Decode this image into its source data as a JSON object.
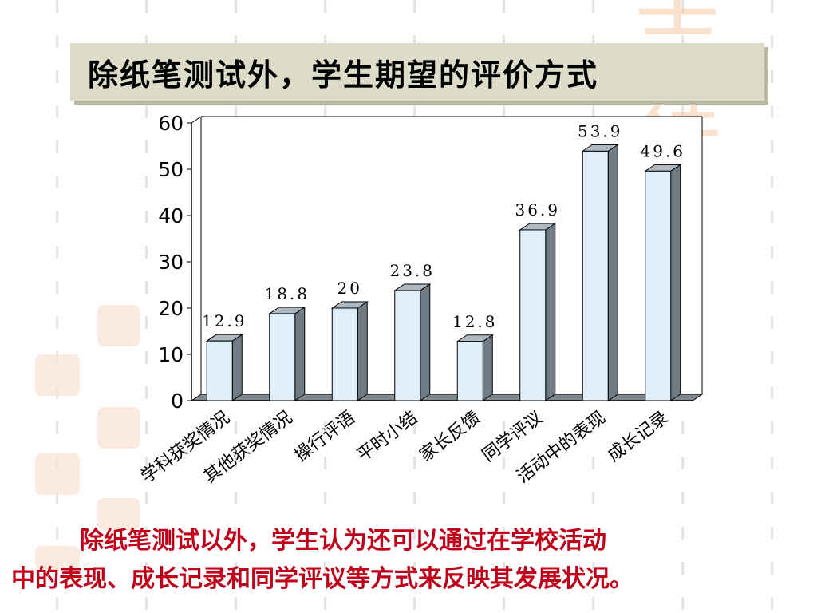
{
  "slide": {
    "title": "除纸笔测试外，学生期望的评价方式",
    "caption_line1": "除纸笔测试以外，学生认为还可以通过在学校活动",
    "caption_line2": "中的表现、成长记录和同学评议等方式来反映其发展状况。"
  },
  "colors": {
    "bar_front": "#dff0fb",
    "bar_side": "#6f7c86",
    "bar_top": "#aeb9c2",
    "caption": "#c0001a",
    "title_bg": "#dcdcc8"
  },
  "chart_data": {
    "type": "bar",
    "categories": [
      "学科获奖情况",
      "其他获奖情况",
      "操行评语",
      "平时小结",
      "家长反馈",
      "同学评议",
      "活动中的表现",
      "成长记录"
    ],
    "values": [
      12.9,
      18.8,
      20,
      23.8,
      12.8,
      36.9,
      53.9,
      49.6
    ],
    "data_labels": [
      "12.9",
      "18.8",
      "20",
      "23.8",
      "12.8",
      "36.9",
      "53.9",
      "49.6"
    ],
    "ylim": [
      0,
      60
    ],
    "yticks": [
      "0",
      "10",
      "20",
      "30",
      "40",
      "50",
      "60"
    ],
    "title": "",
    "xlabel": "",
    "ylabel": "",
    "grid": false,
    "style": "3d-column"
  }
}
